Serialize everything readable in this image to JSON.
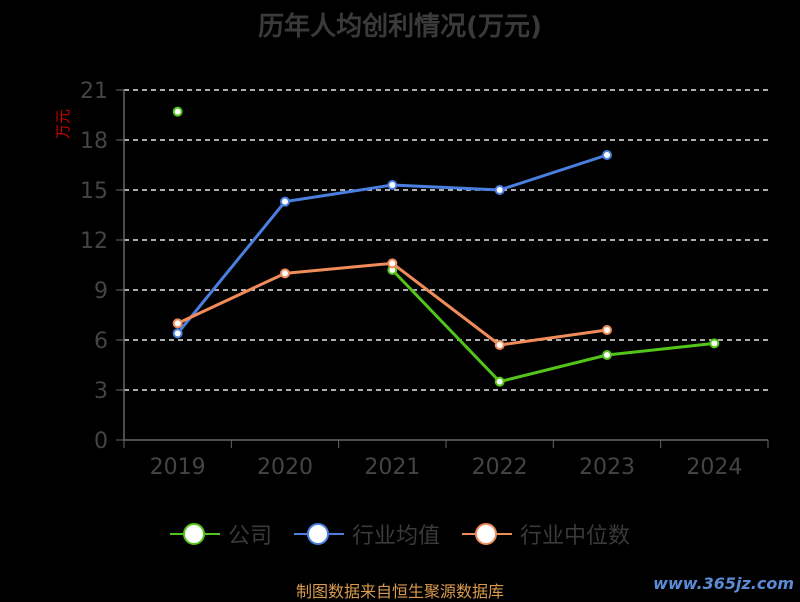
{
  "title": "历年人均创利情况(万元)",
  "source": "制图数据来自恒生聚源数据库",
  "watermark": "www.365jz.com",
  "chart_data": {
    "type": "line",
    "categories": [
      "2019",
      "2020",
      "2021",
      "2022",
      "2023",
      "2024"
    ],
    "ylabel": "万元",
    "ylim": [
      0,
      21
    ],
    "yticks": [
      0,
      3,
      6,
      9,
      12,
      15,
      18,
      21
    ],
    "grid": true,
    "legend_position": "bottom",
    "series": [
      {
        "name": "公司",
        "color": "#52c41a",
        "values": [
          19.7,
          null,
          10.2,
          3.5,
          5.1,
          5.8
        ]
      },
      {
        "name": "行业均值",
        "color": "#4a7fe0",
        "values": [
          6.4,
          14.3,
          15.3,
          15.0,
          17.1,
          null
        ]
      },
      {
        "name": "行业中位数",
        "color": "#f08c5a",
        "values": [
          7.0,
          10.0,
          10.6,
          5.7,
          6.6,
          null
        ]
      }
    ]
  }
}
